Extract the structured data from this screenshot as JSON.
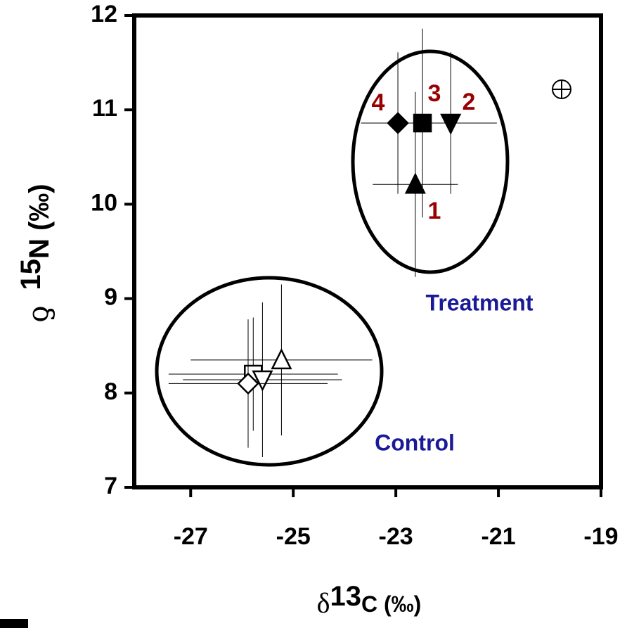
{
  "chart_data": {
    "type": "scatter",
    "x_label": [
      "δ",
      "13",
      "C (‰)"
    ],
    "y_label": [
      "ƍ",
      "15",
      "N (‰)"
    ],
    "xlim": [
      -28.1,
      -19
    ],
    "xticks": [
      -27,
      -25,
      -23,
      -21,
      -19
    ],
    "ylim": [
      7,
      12
    ],
    "yticks": [
      7,
      8,
      9,
      10,
      11,
      12
    ],
    "annotations": [
      "Treatment",
      "Control"
    ],
    "series": [
      {
        "name": "1",
        "marker": "triangle-up",
        "filled": true,
        "color": "#000000",
        "x": [
          -22.62
        ],
        "y": [
          10.21
        ],
        "xerr": [
          0.83
        ],
        "yerr": [
          0.98
        ]
      },
      {
        "name": "2",
        "marker": "triangle-down",
        "filled": true,
        "color": "#000000",
        "x": [
          -21.93
        ],
        "y": [
          10.86
        ],
        "xerr": [
          0.9
        ],
        "yerr": [
          0.75
        ]
      },
      {
        "name": "3",
        "marker": "square",
        "filled": true,
        "color": "#000000",
        "x": [
          -22.48
        ],
        "y": [
          10.86
        ],
        "xerr": [
          1.2
        ],
        "yerr": [
          1.0
        ]
      },
      {
        "name": "4",
        "marker": "diamond",
        "filled": true,
        "color": "#000000",
        "x": [
          -22.96
        ],
        "y": [
          10.86
        ],
        "xerr": [
          0.72
        ],
        "yerr": [
          0.75
        ]
      },
      {
        "marker": "triangle-up",
        "filled": false,
        "color": "#000000",
        "x": [
          -25.23
        ],
        "y": [
          8.35
        ],
        "xerr": [
          1.77
        ],
        "yerr": [
          0.8
        ]
      },
      {
        "marker": "square",
        "filled": false,
        "color": "#000000",
        "x": [
          -25.78
        ],
        "y": [
          8.2
        ],
        "xerr": [
          1.65
        ],
        "yerr": [
          0.6
        ]
      },
      {
        "marker": "triangle-down",
        "filled": false,
        "color": "#000000",
        "x": [
          -25.6
        ],
        "y": [
          8.14
        ],
        "xerr": [
          1.55
        ],
        "yerr": [
          0.82
        ]
      },
      {
        "marker": "diamond",
        "filled": false,
        "color": "#000000",
        "x": [
          -25.88
        ],
        "y": [
          8.1
        ],
        "xerr": [
          1.55
        ],
        "yerr": [
          0.68
        ]
      }
    ]
  }
}
